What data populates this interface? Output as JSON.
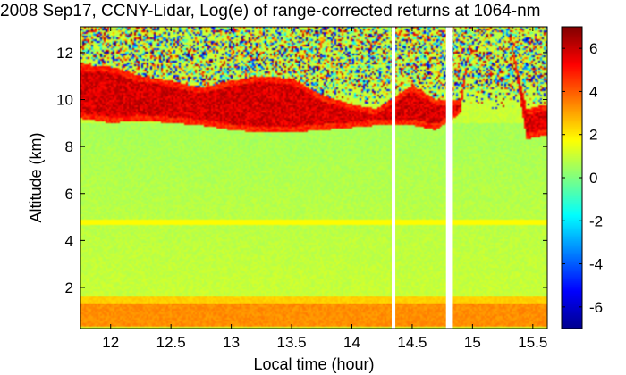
{
  "chart_data": {
    "type": "heatmap",
    "title": "2008 Sep17, CCNY-Lidar, Log(e) of range-corrected returns at 1064-nm",
    "xlabel": "Local time (hour)",
    "ylabel": "Altitude (km)",
    "xlim": [
      11.75,
      15.62
    ],
    "ylim": [
      0.25,
      13.1
    ],
    "x_ticks": [
      12,
      12.5,
      13,
      13.5,
      14,
      14.5,
      15,
      15.5
    ],
    "x_tick_labels": [
      "12",
      "12.5",
      "13",
      "13.5",
      "14",
      "14.5",
      "15",
      "15.5"
    ],
    "y_ticks": [
      2,
      4,
      6,
      8,
      10,
      12
    ],
    "y_tick_labels": [
      "2",
      "4",
      "6",
      "8",
      "10",
      "12"
    ],
    "colorbar": {
      "range": [
        -7,
        7
      ],
      "ticks": [
        6,
        4,
        2,
        0,
        -2,
        -4,
        -6
      ],
      "tick_labels": [
        "6",
        "4",
        "2",
        "0",
        "-2",
        "-4",
        "-6"
      ],
      "colormap": "jet"
    },
    "data_gaps_hour": [
      [
        14.33,
        14.36
      ],
      [
        14.78,
        14.83
      ]
    ],
    "boundary_layer": {
      "altitude_km": [
        0.3,
        1.3
      ],
      "value": 3.3
    },
    "aerosol_layer": {
      "altitude_km": 4.8,
      "value": 1.2
    },
    "background_value": 1.0,
    "cirrus_cloud": {
      "hour": [
        11.75,
        12.0,
        12.25,
        12.5,
        12.75,
        13.0,
        13.25,
        13.5,
        13.75,
        14.0,
        14.2,
        14.5,
        14.7,
        14.9,
        15.0,
        15.3,
        15.45,
        15.62
      ],
      "base_km": [
        9.2,
        9.0,
        9.1,
        9.0,
        8.9,
        8.7,
        8.6,
        8.6,
        8.7,
        8.8,
        8.9,
        8.9,
        8.7,
        9.4,
        13.0,
        13.0,
        8.3,
        8.5
      ],
      "top_km": [
        11.5,
        11.4,
        11.0,
        10.8,
        10.5,
        10.8,
        11.0,
        10.9,
        10.2,
        9.8,
        9.6,
        10.6,
        10.0,
        10.0,
        13.0,
        13.0,
        9.6,
        9.8
      ],
      "value": 5.8
    },
    "noise_region_km": [
      9.5,
      13.1
    ]
  },
  "colors": {
    "jet": [
      "#00008f",
      "#0000ff",
      "#0080ff",
      "#00ffff",
      "#80ff80",
      "#ffff00",
      "#ff8000",
      "#ff0000",
      "#800000"
    ],
    "gap": "#ffffff",
    "axis": "#000000"
  }
}
